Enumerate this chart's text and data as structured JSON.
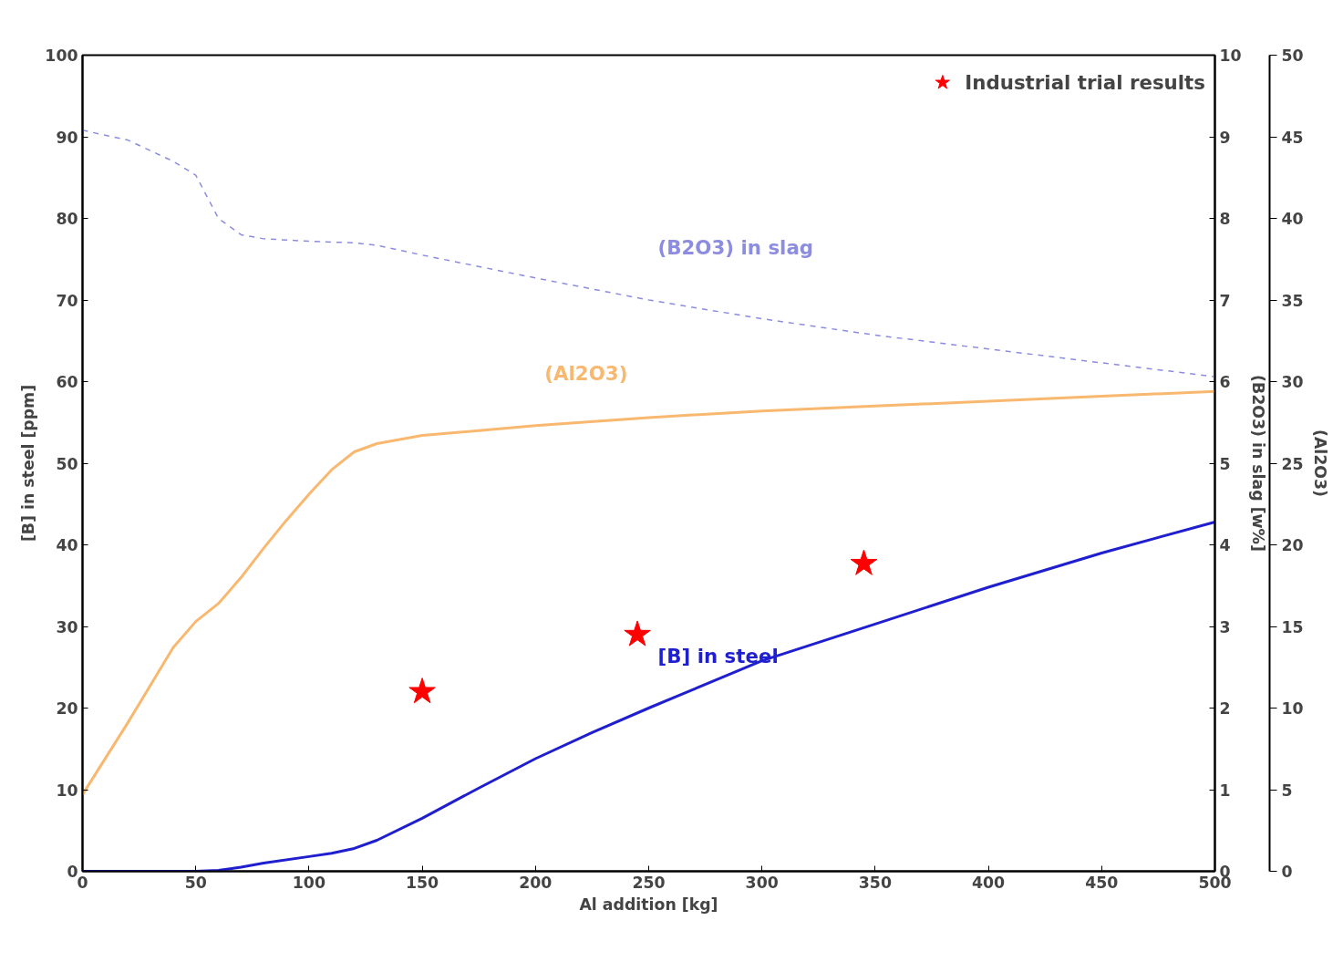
{
  "chart_data": {
    "type": "line",
    "xlabel": "Al addition [kg]",
    "ylabel": "[B] in steel [ppm]",
    "y2label": "(B2O3) in slag [w%]",
    "y3label": "(Al2O3)",
    "xlim": [
      0,
      500
    ],
    "xticks": [
      0,
      50,
      100,
      150,
      200,
      250,
      300,
      350,
      400,
      450,
      500
    ],
    "ylim": [
      0,
      100
    ],
    "yticks": [
      0,
      10,
      20,
      30,
      40,
      50,
      60,
      70,
      80,
      90,
      100
    ],
    "y2lim": [
      0,
      10
    ],
    "y2ticks": [
      0,
      1,
      2,
      3,
      4,
      5,
      6,
      7,
      8,
      9,
      10
    ],
    "y3lim": [
      0,
      50
    ],
    "y3ticks": [
      0,
      5,
      10,
      15,
      20,
      25,
      30,
      35,
      40,
      45,
      50
    ],
    "grid": false,
    "legend": "top right",
    "series": [
      {
        "name": "(B2O3) in slag",
        "color": "#8c8ce0",
        "axis": "y2",
        "line_style": "dashed",
        "x": [
          0,
          20,
          40,
          50,
          60,
          70,
          80,
          100,
          120,
          130,
          150,
          200,
          250,
          300,
          350,
          400,
          450,
          500
        ],
        "values": [
          9.08,
          8.96,
          8.7,
          8.53,
          8.0,
          7.8,
          7.75,
          7.72,
          7.7,
          7.67,
          7.55,
          7.27,
          7.0,
          6.77,
          6.57,
          6.4,
          6.23,
          6.06
        ]
      },
      {
        "name": "(Al2O3)",
        "color": "#f9b870",
        "axis": "y3",
        "line_style": "solid",
        "x": [
          0,
          20,
          40,
          50,
          60,
          70,
          80,
          90,
          100,
          110,
          120,
          130,
          150,
          175,
          200,
          250,
          300,
          350,
          400,
          450,
          500
        ],
        "values": [
          4.7,
          9.1,
          13.7,
          15.3,
          16.4,
          18.0,
          19.8,
          21.5,
          23.1,
          24.6,
          25.7,
          26.2,
          26.7,
          27.0,
          27.3,
          27.8,
          28.2,
          28.5,
          28.8,
          29.1,
          29.4
        ]
      },
      {
        "name": "[B] in steel",
        "color": "#1f1fd0",
        "axis": "y",
        "line_style": "solid",
        "x": [
          0,
          50,
          60,
          70,
          80,
          100,
          110,
          120,
          130,
          150,
          175,
          200,
          225,
          250,
          300,
          350,
          400,
          450,
          500
        ],
        "values": [
          0,
          0,
          0.1,
          0.5,
          1,
          1.8,
          2.2,
          2.8,
          3.8,
          6.5,
          10.2,
          13.8,
          17,
          20,
          25.8,
          30.3,
          34.8,
          39,
          42.8
        ]
      },
      {
        "name": "Industrial trial results",
        "type": "scatter",
        "marker": "star",
        "color": "#ff0000",
        "axis": "y",
        "x": [
          150,
          245,
          345
        ],
        "values": [
          22,
          29,
          37.7
        ]
      }
    ]
  }
}
